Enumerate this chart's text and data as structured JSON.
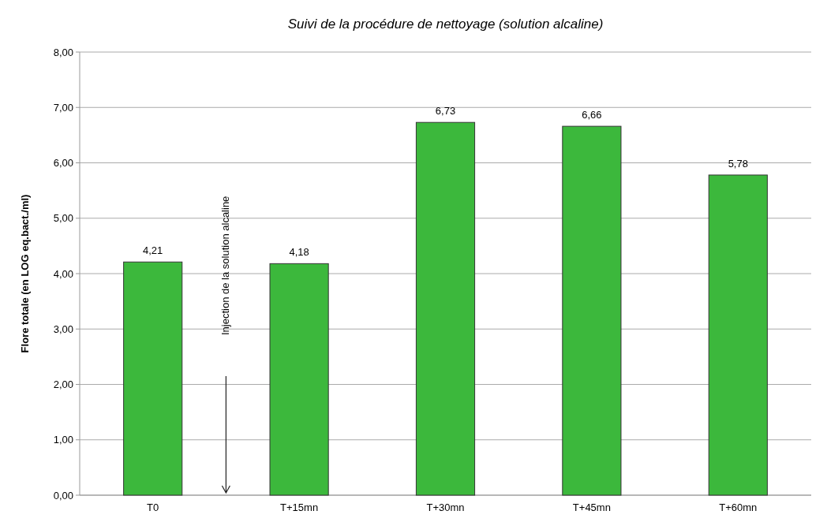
{
  "chart_data": {
    "type": "bar",
    "title": "Suivi de la procédure de nettoyage (solution alcaline)",
    "ylabel": "Flore totale (en LOG eq.bact./ml)",
    "categories": [
      "T0",
      "T+15mn",
      "T+30mn",
      "T+45mn",
      "T+60mn"
    ],
    "values": [
      4.21,
      4.18,
      6.73,
      6.66,
      5.78
    ],
    "color": "#3cb83c",
    "value_labels": [
      "4,21",
      "4,18",
      "6,73",
      "6,66",
      "5,78"
    ],
    "ylim": [
      0,
      8
    ],
    "yticks": [
      {
        "value": 0,
        "label": "0,00"
      },
      {
        "value": 1,
        "label": "1,00"
      },
      {
        "value": 2,
        "label": "2,00"
      },
      {
        "value": 3,
        "label": "3,00"
      },
      {
        "value": 4,
        "label": "4,00"
      },
      {
        "value": 5,
        "label": "5,00"
      },
      {
        "value": 6,
        "label": "6,00"
      },
      {
        "value": 7,
        "label": "7,00"
      },
      {
        "value": 8,
        "label": "8,00"
      }
    ],
    "grid": "y",
    "annotations": [
      "Injection de la solution alcaline"
    ]
  }
}
